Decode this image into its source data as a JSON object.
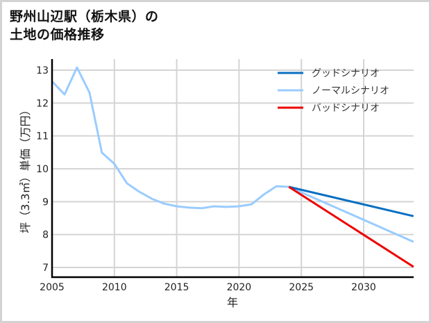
{
  "title": {
    "line1": "野州山辺駅（栃木県）の",
    "line2": "土地の価格推移"
  },
  "chart_data": {
    "type": "line",
    "title": "野州山辺駅（栃木県）の土地の価格推移",
    "xlabel": "年",
    "ylabel": "坪（3.3㎡）単価（万円）",
    "xlim": [
      2005,
      2034
    ],
    "ylim": [
      6.7,
      13.35
    ],
    "grid": true,
    "legend_position": "upper right",
    "x_ticks": [
      2005,
      2010,
      2015,
      2020,
      2025,
      2030
    ],
    "y_ticks": [
      7,
      8,
      9,
      10,
      11,
      12,
      13
    ],
    "series": [
      {
        "name": "グッドシナリオ",
        "color": "#0a6fc2",
        "x": [
          2024,
          2034
        ],
        "values": [
          9.45,
          8.56
        ]
      },
      {
        "name": "ノーマルシナリオ",
        "color": "#99ccff",
        "x": [
          2005,
          2006,
          2007,
          2008,
          2009,
          2010,
          2011,
          2012,
          2013,
          2014,
          2015,
          2016,
          2017,
          2018,
          2019,
          2020,
          2021,
          2022,
          2023,
          2024,
          2034
        ],
        "values": [
          12.66,
          12.26,
          13.08,
          12.32,
          10.49,
          10.15,
          9.56,
          9.3,
          9.09,
          8.94,
          8.86,
          8.82,
          8.8,
          8.86,
          8.84,
          8.86,
          8.92,
          9.22,
          9.47,
          9.45,
          7.78
        ]
      },
      {
        "name": "バッドシナリオ",
        "color": "#ee0000",
        "x": [
          2024,
          2034
        ],
        "values": [
          9.45,
          7.02
        ]
      }
    ]
  }
}
